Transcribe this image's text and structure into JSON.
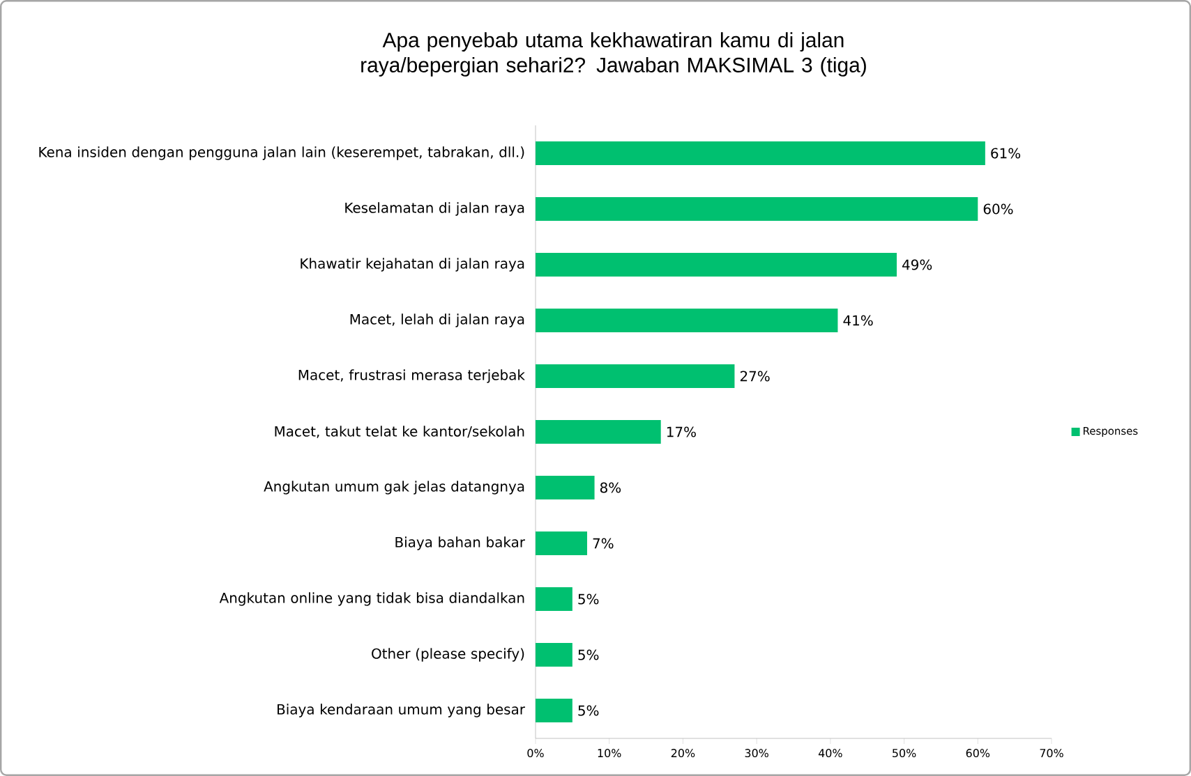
{
  "chart_data": {
    "type": "bar",
    "orientation": "horizontal",
    "title": "Apa penyebab utama kekhawatiran kamu di jalan raya/bepergian sehari2? Jawaban MAKSIMAL 3 (tiga)",
    "categories": [
      "Kena insiden dengan pengguna jalan lain (keserempet, tabrakan, dll.)",
      "Keselamatan di jalan raya",
      "Khawatir kejahatan di jalan raya",
      "Macet, lelah di jalan raya",
      "Macet, frustrasi merasa terjebak",
      "Macet, takut telat ke kantor/sekolah",
      "Angkutan umum gak jelas datangnya",
      "Biaya bahan bakar",
      "Angkutan online yang tidak bisa diandalkan",
      "Other (please specify)",
      "Biaya kendaraan umum yang besar"
    ],
    "series": [
      {
        "name": "Responses",
        "color": "#00c070",
        "values": [
          61,
          60,
          49,
          41,
          27,
          17,
          8,
          7,
          5,
          5,
          5
        ],
        "value_labels": [
          "61%",
          "60%",
          "49%",
          "41%",
          "27%",
          "17%",
          "8%",
          "7%",
          "5%",
          "5%",
          "5%"
        ]
      }
    ],
    "xlim": [
      0,
      70
    ],
    "xticks": [
      {
        "value": 0,
        "label": "0%"
      },
      {
        "value": 10,
        "label": "10%"
      },
      {
        "value": 20,
        "label": "20%"
      },
      {
        "value": 30,
        "label": "30%"
      },
      {
        "value": 40,
        "label": "40%"
      },
      {
        "value": 50,
        "label": "50%"
      },
      {
        "value": 60,
        "label": "60%"
      },
      {
        "value": 70,
        "label": "70%"
      }
    ],
    "legend": "right"
  }
}
